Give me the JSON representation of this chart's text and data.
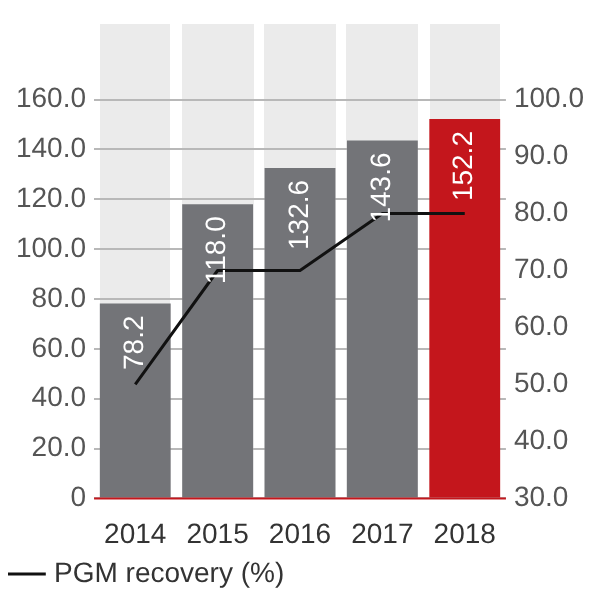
{
  "chart_data": {
    "type": "bar",
    "categories": [
      "2014",
      "2015",
      "2016",
      "2017",
      "2018"
    ],
    "series": [
      {
        "colors": [
          "#737478",
          "#737478",
          "#737478",
          "#737478",
          "#c4161c"
        ],
        "values": [
          78.2,
          118.0,
          132.6,
          143.6,
          152.2
        ],
        "value_labels": [
          "78.2",
          "118.0",
          "132.6",
          "143.6",
          "152.2"
        ]
      },
      {
        "type": "line",
        "name": "PGM recovery (%)",
        "color": "#111111",
        "axis": "y2",
        "marker": "none",
        "values": [
          50,
          70,
          70,
          80,
          80
        ]
      }
    ],
    "ylim": [
      0,
      190
    ],
    "yticks": [
      {
        "value": 0,
        "label": "0"
      },
      {
        "value": 20,
        "label": "20.0"
      },
      {
        "value": 40,
        "label": "40.0"
      },
      {
        "value": 60,
        "label": "60.0"
      },
      {
        "value": 80,
        "label": "80.0"
      },
      {
        "value": 100,
        "label": "100.0"
      },
      {
        "value": 120,
        "label": "120.0"
      },
      {
        "value": 140,
        "label": "140.0"
      },
      {
        "value": 160,
        "label": "160.0"
      }
    ],
    "y2lim": [
      30,
      113.125
    ],
    "y2ticks": [
      {
        "value": 30,
        "label": "30.0"
      },
      {
        "value": 40,
        "label": "40.0"
      },
      {
        "value": 50,
        "label": "50.0"
      },
      {
        "value": 60,
        "label": "60.0"
      },
      {
        "value": 70,
        "label": "70.0"
      },
      {
        "value": 80,
        "label": "80.0"
      },
      {
        "value": 90,
        "label": "90.0"
      },
      {
        "value": 100,
        "label": "100.0"
      }
    ],
    "grid": "y",
    "legend": "bottom"
  }
}
